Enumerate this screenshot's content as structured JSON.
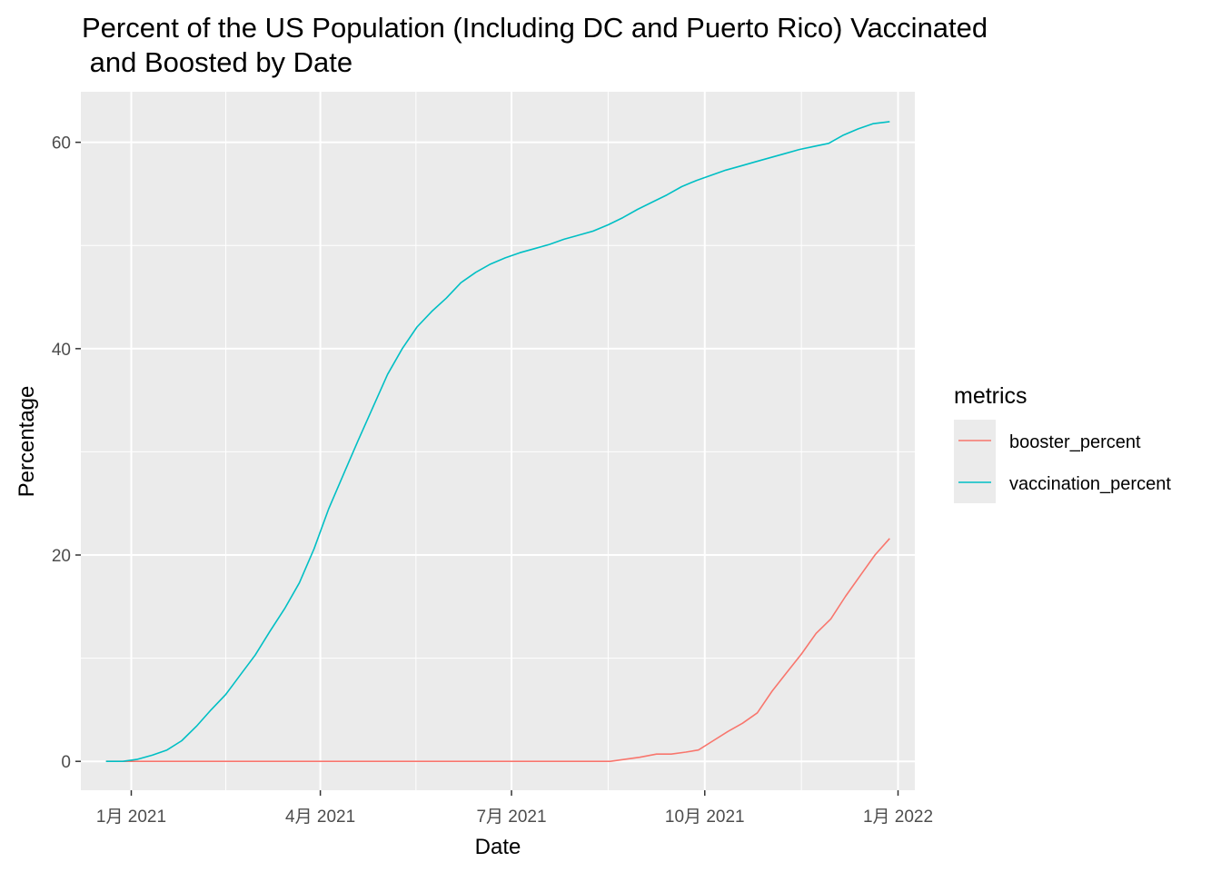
{
  "chart_data": {
    "type": "line",
    "title": "Percent of the US Population (Including DC and Puerto Rico) Vaccinated\n and Boosted by Date",
    "xlabel": "Date",
    "ylabel": "Percentage",
    "xlim": [
      "2020-12-08",
      "2022-01-09"
    ],
    "ylim": [
      -2.8,
      64.9
    ],
    "x_ticks": [
      {
        "date": "2021-01-01",
        "label": "1月 2021"
      },
      {
        "date": "2021-04-01",
        "label": "4月 2021"
      },
      {
        "date": "2021-07-01",
        "label": "7月 2021"
      },
      {
        "date": "2021-10-01",
        "label": "10月 2021"
      },
      {
        "date": "2022-01-01",
        "label": "1月 2022"
      }
    ],
    "y_ticks": [
      0,
      20,
      40,
      60
    ],
    "grid": true,
    "legend": {
      "title": "metrics",
      "position": "right"
    },
    "series": [
      {
        "name": "booster_percent",
        "color": "#F8766D",
        "points": [
          [
            "2020-12-20",
            0
          ],
          [
            "2021-01-01",
            0
          ],
          [
            "2021-02-01",
            0
          ],
          [
            "2021-03-01",
            0
          ],
          [
            "2021-04-01",
            0
          ],
          [
            "2021-05-01",
            0
          ],
          [
            "2021-06-01",
            0
          ],
          [
            "2021-07-01",
            0
          ],
          [
            "2021-08-01",
            0
          ],
          [
            "2021-08-17",
            0
          ],
          [
            "2021-08-31",
            0.4
          ],
          [
            "2021-09-08",
            0.7
          ],
          [
            "2021-09-15",
            0.7
          ],
          [
            "2021-09-22",
            0.9
          ],
          [
            "2021-09-28",
            1.1
          ],
          [
            "2021-10-05",
            2.0
          ],
          [
            "2021-10-12",
            2.9
          ],
          [
            "2021-10-19",
            3.7
          ],
          [
            "2021-10-26",
            4.7
          ],
          [
            "2021-11-02",
            6.8
          ],
          [
            "2021-11-09",
            8.6
          ],
          [
            "2021-11-16",
            10.4
          ],
          [
            "2021-11-23",
            12.4
          ],
          [
            "2021-11-30",
            13.8
          ],
          [
            "2021-12-07",
            16.0
          ],
          [
            "2021-12-14",
            18.0
          ],
          [
            "2021-12-21",
            20.0
          ],
          [
            "2021-12-28",
            21.6
          ]
        ]
      },
      {
        "name": "vaccination_percent",
        "color": "#00BFC4",
        "points": [
          [
            "2020-12-20",
            0
          ],
          [
            "2020-12-28",
            0
          ],
          [
            "2021-01-04",
            0.2
          ],
          [
            "2021-01-11",
            0.6
          ],
          [
            "2021-01-18",
            1.1
          ],
          [
            "2021-01-25",
            2.0
          ],
          [
            "2021-02-01",
            3.4
          ],
          [
            "2021-02-08",
            5.0
          ],
          [
            "2021-02-15",
            6.5
          ],
          [
            "2021-02-22",
            8.4
          ],
          [
            "2021-03-01",
            10.3
          ],
          [
            "2021-03-08",
            12.6
          ],
          [
            "2021-03-15",
            14.8
          ],
          [
            "2021-03-22",
            17.3
          ],
          [
            "2021-03-29",
            20.6
          ],
          [
            "2021-04-05",
            24.5
          ],
          [
            "2021-04-12",
            27.8
          ],
          [
            "2021-04-19",
            31.1
          ],
          [
            "2021-04-26",
            34.3
          ],
          [
            "2021-05-03",
            37.5
          ],
          [
            "2021-05-10",
            40.0
          ],
          [
            "2021-05-17",
            42.1
          ],
          [
            "2021-05-24",
            43.6
          ],
          [
            "2021-05-31",
            44.9
          ],
          [
            "2021-06-07",
            46.4
          ],
          [
            "2021-06-14",
            47.4
          ],
          [
            "2021-06-21",
            48.2
          ],
          [
            "2021-06-28",
            48.8
          ],
          [
            "2021-07-05",
            49.3
          ],
          [
            "2021-07-12",
            49.7
          ],
          [
            "2021-07-19",
            50.1
          ],
          [
            "2021-07-26",
            50.6
          ],
          [
            "2021-08-02",
            51.0
          ],
          [
            "2021-08-09",
            51.4
          ],
          [
            "2021-08-16",
            52.0
          ],
          [
            "2021-08-23",
            52.7
          ],
          [
            "2021-08-30",
            53.5
          ],
          [
            "2021-09-06",
            54.2
          ],
          [
            "2021-09-13",
            54.9
          ],
          [
            "2021-09-20",
            55.7
          ],
          [
            "2021-09-27",
            56.3
          ],
          [
            "2021-10-04",
            56.8
          ],
          [
            "2021-10-11",
            57.3
          ],
          [
            "2021-10-18",
            57.7
          ],
          [
            "2021-10-25",
            58.1
          ],
          [
            "2021-11-01",
            58.5
          ],
          [
            "2021-11-08",
            58.9
          ],
          [
            "2021-11-15",
            59.3
          ],
          [
            "2021-11-22",
            59.6
          ],
          [
            "2021-11-29",
            59.9
          ],
          [
            "2021-12-06",
            60.7
          ],
          [
            "2021-12-13",
            61.3
          ],
          [
            "2021-12-20",
            61.8
          ],
          [
            "2021-12-28",
            62.0
          ]
        ]
      }
    ]
  }
}
